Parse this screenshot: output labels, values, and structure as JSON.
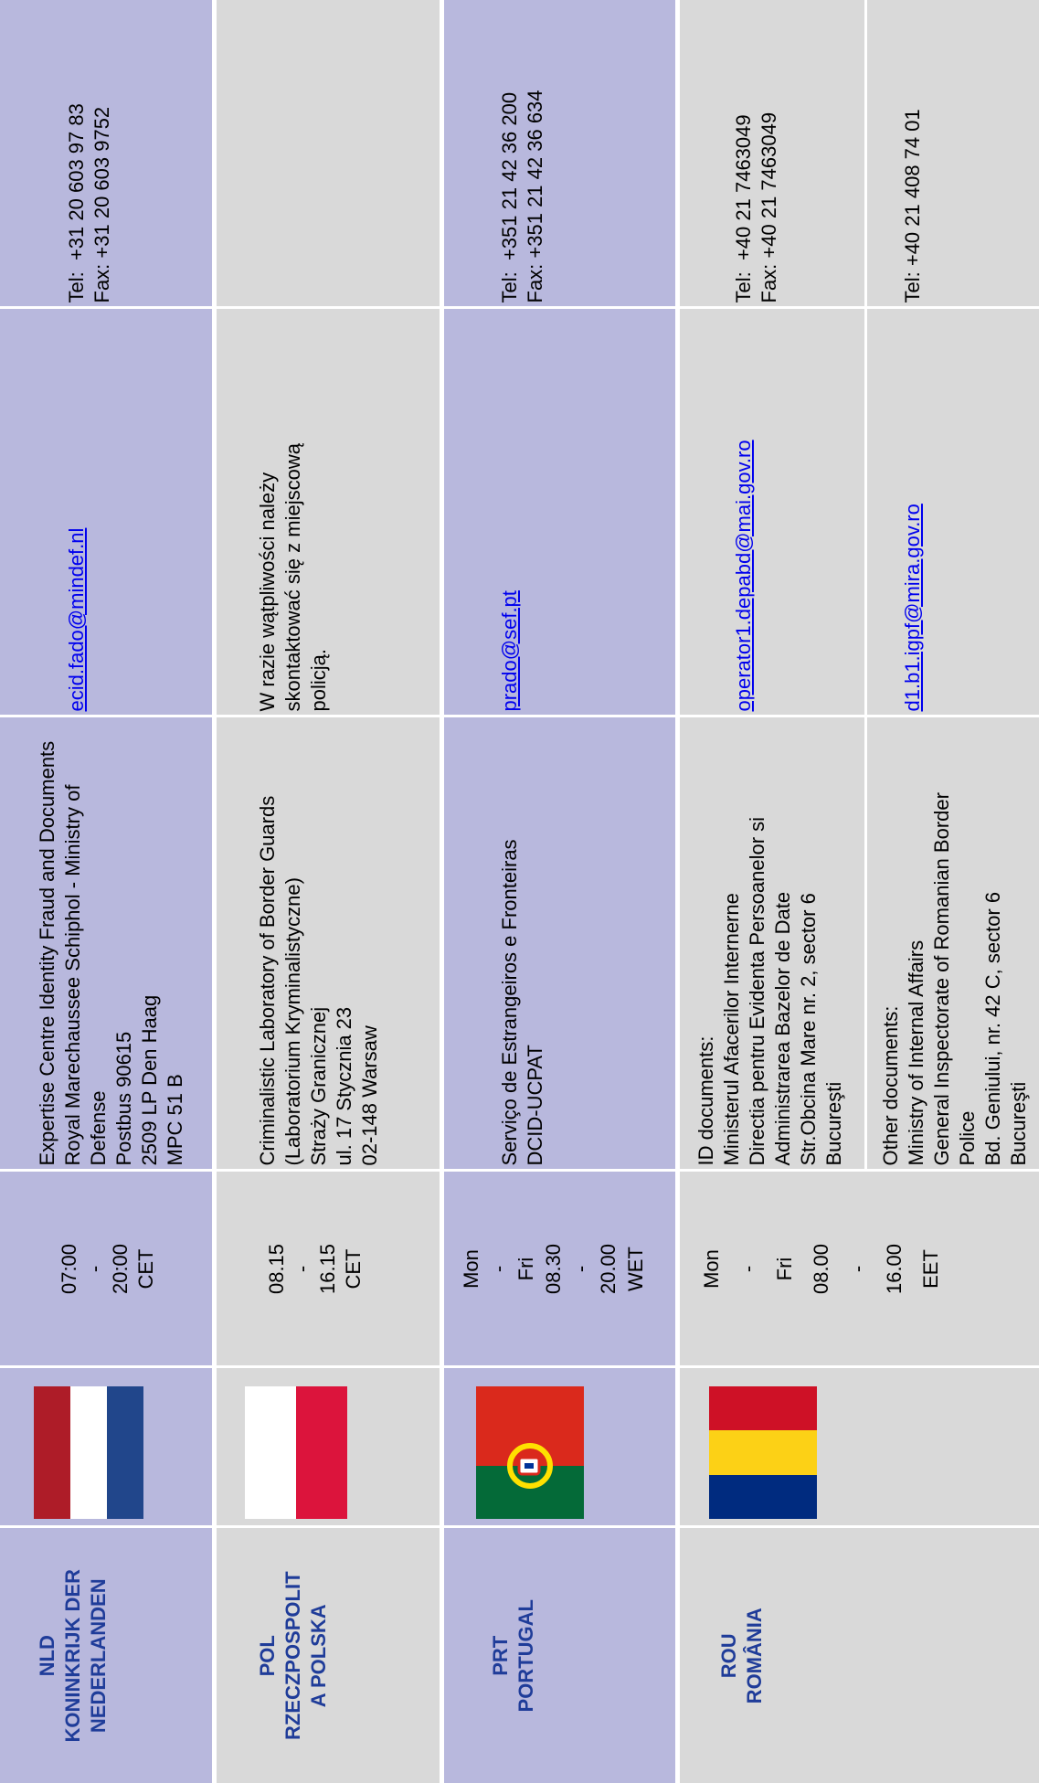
{
  "rows": [
    {
      "code": "NLD",
      "name": [
        "KONINKRIJK DER",
        "NEDERLANDEN"
      ],
      "hours": [
        "07:00",
        "-",
        "20:00",
        "CET"
      ],
      "contacts": [
        {
          "address": [
            [
              "Expertise Centre Identity Fraud and Documents",
              "Royal Marechaussee Schiphol - Ministry of",
              "Defense",
              "Postbus 90615",
              "2509 LP Den Haag",
              "MPC 51 B"
            ]
          ],
          "email": "ecid.fado@mindef.nl",
          "phone": [
            "Tel:  +31 20 603 97 83",
            "Fax: +31 20 603 9752"
          ]
        }
      ]
    },
    {
      "code": "POL",
      "name": [
        "RZECZPOSPOLIT",
        "A POLSKA"
      ],
      "hours": [
        "08.15",
        "-",
        "16.15",
        "CET"
      ],
      "contacts": [
        {
          "address": [
            [
              "Criminalistic Laboratory of Border Guards",
              "(Laboratorium Kryminalistyczne)"
            ],
            [
              "Straży Granicznej",
              "ul. 17 Stycznia 23"
            ],
            [
              "02-148 Warsaw"
            ]
          ],
          "note": [
            "W razie wątpliwości należy",
            "skontaktować się z miejscową",
            "policją."
          ]
        }
      ]
    },
    {
      "code": "PRT",
      "name": [
        "PORTUGAL"
      ],
      "hours": [
        "Mon",
        "-",
        "Fri",
        "08.30",
        "-",
        "20.00",
        "WET"
      ],
      "contacts": [
        {
          "address": [
            [
              "Serviço de Estrangeiros e Fronteiras",
              "DCID-UCPAT"
            ]
          ],
          "email": "prado@sef.pt",
          "phone": [
            "Tel:  +351 21 42 36 200",
            "Fax: +351 21 42 36 634"
          ]
        }
      ]
    },
    {
      "code": "ROU",
      "name": [
        "ROMÂNIA"
      ],
      "hours": [
        "Mon",
        "-",
        "Fri",
        "08.00",
        "-",
        "16.00",
        "EET"
      ],
      "contacts": [
        {
          "heading": "ID documents:",
          "address": [
            [
              "Ministerul Afacerilor Internerne",
              "Directia pentru Evidenta Persoanelor si",
              "Administrarea Bazelor de Date",
              "Str.Obcina Mare nr. 2, sector 6",
              "Bucureşti"
            ]
          ],
          "email": "operator1.depabd@mai.gov.ro",
          "phone": [
            "Tel:  +40 21 7463049",
            "Fax: +40 21 7463049"
          ]
        },
        {
          "heading": "Other documents:",
          "address": [
            [
              "Ministry of Internal Affairs",
              "General Inspectorate of Romanian Border",
              "Police",
              "Bd. Geniului, nr. 42 C, sector 6",
              "Bucureşti"
            ]
          ],
          "email": "d1.b1.igpf@mira.gov.ro",
          "phone": [
            "Tel: +40 21 408 74 01"
          ]
        }
      ]
    }
  ]
}
